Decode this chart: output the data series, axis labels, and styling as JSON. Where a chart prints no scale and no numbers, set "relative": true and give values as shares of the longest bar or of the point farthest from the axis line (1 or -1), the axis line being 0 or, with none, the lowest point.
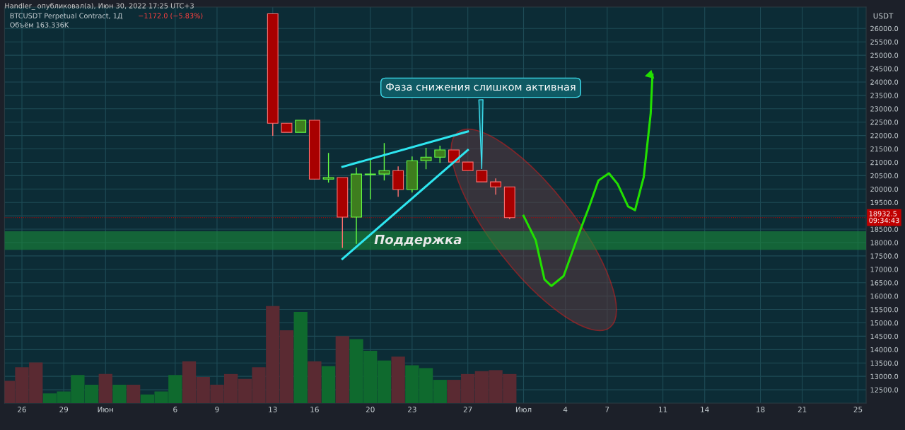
{
  "chart_data": [
    {
      "type": "candlestick",
      "title": "BTCUSDT Perpetual Contract, 1Д",
      "ylabel": "USDT",
      "x": [
        "2022-06-13",
        "2022-06-14",
        "2022-06-15",
        "2022-06-16",
        "2022-06-17",
        "2022-06-18",
        "2022-06-19",
        "2022-06-20",
        "2022-06-21",
        "2022-06-22",
        "2022-06-23",
        "2022-06-24",
        "2022-06-25",
        "2022-06-26",
        "2022-06-27",
        "2022-06-28",
        "2022-06-29",
        "2022-06-30"
      ],
      "ohlc": [
        [
          26550,
          26550,
          21990,
          22460
        ],
        [
          22460,
          22460,
          22120,
          22120
        ],
        [
          22120,
          22570,
          22120,
          22570
        ],
        [
          22570,
          22570,
          20370,
          20370
        ],
        [
          20370,
          21350,
          20240,
          20430
        ],
        [
          20430,
          20430,
          17800,
          18950
        ],
        [
          18950,
          20800,
          17950,
          20560
        ],
        [
          20540,
          21090,
          19610,
          20560
        ],
        [
          20560,
          21720,
          20320,
          20690
        ],
        [
          20690,
          20850,
          19710,
          19980
        ],
        [
          19980,
          21220,
          19870,
          21060
        ],
        [
          21060,
          21540,
          20740,
          21190
        ],
        [
          21190,
          21620,
          20980,
          21460
        ],
        [
          21460,
          21460,
          21010,
          21010
        ],
        [
          21010,
          21010,
          20690,
          20690
        ],
        [
          20690,
          20690,
          20270,
          20270
        ],
        [
          20270,
          20400,
          19790,
          20080
        ],
        [
          20080,
          20080,
          18870,
          18932.5
        ]
      ],
      "colors": [
        "#a80000",
        "#a80000",
        "#3e7d1e",
        "#a80000",
        "#3e7d1e",
        "#a80000",
        "#3e7d1e",
        "#3e7d1e",
        "#3e7d1e",
        "#a80000",
        "#3e7d1e",
        "#3e7d1e",
        "#3e7d1e",
        "#a80000",
        "#a80000",
        "#a80000",
        "#a80000",
        "#a80000"
      ],
      "series": [
        {
          "type": "line",
          "color": "#2ee6f0",
          "x": [
            "2022-06-18",
            "2022-06-27"
          ],
          "values": [
            20830,
            22150
          ]
        },
        {
          "type": "line",
          "color": "#2ee6f0",
          "x": [
            "2022-06-18",
            "2022-06-27"
          ],
          "values": [
            17390,
            21460
          ]
        },
        {
          "type": "line",
          "color": "#22e000",
          "x": [
            "2022-07-01",
            "2022-07-01T21:00",
            "2022-07-02T12:00",
            "2022-07-03",
            "2022-07-03T21:00",
            "2022-07-04T21:00",
            "2022-07-05T18:00",
            "2022-07-06T09:00",
            "2022-07-07T03:00",
            "2022-07-07T18:00",
            "2022-07-08T12:00",
            "2022-07-09",
            "2022-07-09T15:00",
            "2022-07-10T03:00",
            "2022-07-10T06:00"
          ],
          "values": [
            19000,
            18080,
            16620,
            16380,
            16750,
            18200,
            19400,
            20320,
            20590,
            20190,
            19350,
            19210,
            20450,
            22830,
            24280
          ]
        }
      ],
      "xlim": [
        "2022-05-24T18:00",
        "2022-07-25T14:00"
      ],
      "xticks": [
        {
          "value": "2022-05-26",
          "label": "26"
        },
        {
          "value": "2022-05-29",
          "label": "29"
        },
        {
          "value": "2022-06-01",
          "label": "Июн"
        },
        {
          "value": "2022-06-06",
          "label": "6"
        },
        {
          "value": "2022-06-09",
          "label": "9"
        },
        {
          "value": "2022-06-13",
          "label": "13"
        },
        {
          "value": "2022-06-16",
          "label": "16"
        },
        {
          "value": "2022-06-20",
          "label": "20"
        },
        {
          "value": "2022-06-23",
          "label": "23"
        },
        {
          "value": "2022-06-27",
          "label": "27"
        },
        {
          "value": "2022-07-01",
          "label": "Июл"
        },
        {
          "value": "2022-07-04",
          "label": "4"
        },
        {
          "value": "2022-07-07",
          "label": "7"
        },
        {
          "value": "2022-07-11",
          "label": "11"
        },
        {
          "value": "2022-07-14",
          "label": "14"
        },
        {
          "value": "2022-07-18",
          "label": "18"
        },
        {
          "value": "2022-07-21",
          "label": "21"
        },
        {
          "value": "2022-07-25",
          "label": "25"
        }
      ],
      "ylim": [
        12000,
        26800
      ],
      "yticks": [
        {
          "value": 12500,
          "label": "12500.0"
        },
        {
          "value": 13000,
          "label": "13000.0"
        },
        {
          "value": 13500,
          "label": "13500.0"
        },
        {
          "value": 14000,
          "label": "14000.0"
        },
        {
          "value": 14500,
          "label": "14500.0"
        },
        {
          "value": 15000,
          "label": "15000.0"
        },
        {
          "value": 15500,
          "label": "15500.0"
        },
        {
          "value": 16000,
          "label": "16000.0"
        },
        {
          "value": 16500,
          "label": "16500.0"
        },
        {
          "value": 17000,
          "label": "17000.0"
        },
        {
          "value": 17500,
          "label": "17500.0"
        },
        {
          "value": 18000,
          "label": "18000.0"
        },
        {
          "value": 18500,
          "label": "18500.0"
        },
        {
          "value": 19000,
          "label": null
        },
        {
          "value": 19500,
          "label": "19500.0"
        },
        {
          "value": 20000,
          "label": "20000.0"
        },
        {
          "value": 20500,
          "label": "20500.0"
        },
        {
          "value": 21000,
          "label": "21000.0"
        },
        {
          "value": 21500,
          "label": "21500.0"
        },
        {
          "value": 22000,
          "label": "22000.0"
        },
        {
          "value": 22500,
          "label": "22500.0"
        },
        {
          "value": 23000,
          "label": "23000.0"
        },
        {
          "value": 23500,
          "label": "23500.0"
        },
        {
          "value": 24000,
          "label": "24000.0"
        },
        {
          "value": 24500,
          "label": "24500.0"
        },
        {
          "value": 25000,
          "label": "25000.0"
        },
        {
          "value": 25500,
          "label": "25500.0"
        },
        {
          "value": 26000,
          "label": "26000.0"
        }
      ],
      "grid": true,
      "ref_lines": [
        {
          "axis": "y",
          "value": 18932.5,
          "label": "18932.5\n09:34:43",
          "color": "#c00000",
          "line_style": "dotted"
        }
      ],
      "bands": [
        {
          "axis": "y",
          "from": 17730,
          "to": 18420,
          "label": "Поддержка",
          "color": "#1a8a3a"
        }
      ],
      "annotations": [
        "Handler_ опубликовал(а), Июн 30, 2022 17:25 UTC+3",
        "−1172.0 (−5.83%)",
        "Объём 163.336K",
        {
          "text": "Фаза снижения слишком активная",
          "x": "2022-06-28",
          "y": 20690
        }
      ]
    },
    {
      "type": "bar",
      "relative": true,
      "tick_labels": false,
      "x": [
        "2022-05-25",
        "2022-05-26",
        "2022-05-27",
        "2022-05-28",
        "2022-05-29",
        "2022-05-30",
        "2022-05-31",
        "2022-06-01",
        "2022-06-02",
        "2022-06-03",
        "2022-06-04",
        "2022-06-05",
        "2022-06-06",
        "2022-06-07",
        "2022-06-08",
        "2022-06-09",
        "2022-06-10",
        "2022-06-11",
        "2022-06-12",
        "2022-06-13",
        "2022-06-14",
        "2022-06-15",
        "2022-06-16",
        "2022-06-17",
        "2022-06-18",
        "2022-06-19",
        "2022-06-20",
        "2022-06-21",
        "2022-06-22",
        "2022-06-23",
        "2022-06-24",
        "2022-06-25",
        "2022-06-26",
        "2022-06-27",
        "2022-06-28",
        "2022-06-29",
        "2022-06-30"
      ],
      "values": [
        0.23,
        0.37,
        0.42,
        0.1,
        0.12,
        0.29,
        0.19,
        0.3,
        0.19,
        0.19,
        0.09,
        0.12,
        0.29,
        0.43,
        0.27,
        0.19,
        0.3,
        0.25,
        0.37,
        1,
        0.75,
        0.94,
        0.43,
        0.38,
        0.69,
        0.66,
        0.54,
        0.44,
        0.48,
        0.39,
        0.36,
        0.24,
        0.24,
        0.3,
        0.33,
        0.34,
        0.3
      ],
      "colors": [
        "#5a2a32",
        "#5a2a32",
        "#5a2a32",
        "#0f6a2e",
        "#0f6a2e",
        "#0f6a2e",
        "#0f6a2e",
        "#5a2a32",
        "#0f6a2e",
        "#5a2a32",
        "#0f6a2e",
        "#0f6a2e",
        "#0f6a2e",
        "#5a2a32",
        "#5a2a32",
        "#5a2a32",
        "#5a2a32",
        "#5a2a32",
        "#5a2a32",
        "#5a2a32",
        "#5a2a32",
        "#0f6a2e",
        "#5a2a32",
        "#0f6a2e",
        "#5a2a32",
        "#0f6a2e",
        "#0f6a2e",
        "#0f6a2e",
        "#5a2a32",
        "#0f6a2e",
        "#0f6a2e",
        "#0f6a2e",
        "#5a2a32",
        "#5a2a32",
        "#5a2a32",
        "#5a2a32",
        "#5a2a32"
      ],
      "xlim": [
        "2022-05-24T18:00",
        "2022-07-25T14:00"
      ]
    }
  ]
}
